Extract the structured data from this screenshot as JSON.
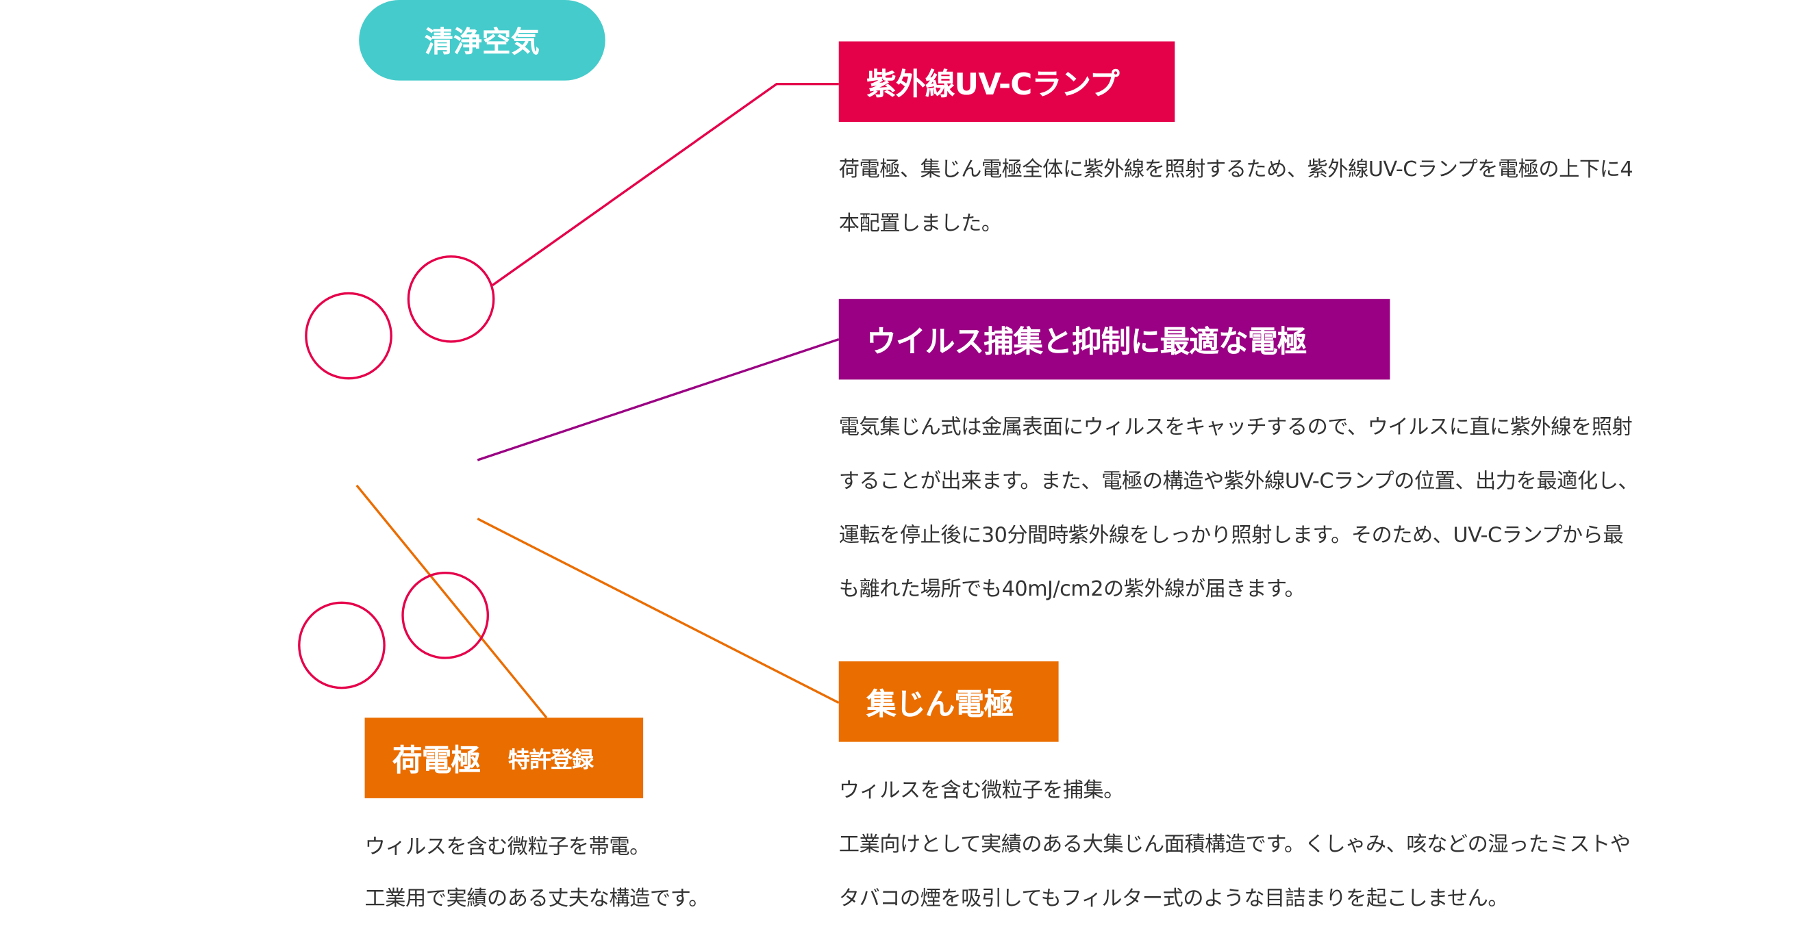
{
  "colors": {
    "teal": "#45CBCB",
    "red": "#E5004A",
    "purple": "#9A0083",
    "orange": "#EA6D00",
    "text": "#333333"
  },
  "badge": {
    "label": "清浄空気"
  },
  "uv": {
    "title": "紫外線UV-Cランプ",
    "lines": [
      "荷電極、集じん電極全体に紫外線を照射するため、紫外線UV-Cランプを電極の上下に4",
      "本配置しました。"
    ]
  },
  "electrode": {
    "title": "ウイルス捕集と抑制に最適な電極",
    "lines": [
      "電気集じん式は金属表面にウィルスをキャッチするので、ウイルスに直に紫外線を照射",
      "することが出来ます。また、電極の構造や紫外線UV-Cランプの位置、出力を最適化し、",
      "運転を停止後に30分間時紫外線をしっかり照射します。そのため、UV-Cランプから最",
      "も離れた場所でも40mJ/cm2の紫外線が届きます。"
    ]
  },
  "collector": {
    "title": "集じん電極",
    "lines": [
      "ウィルスを含む微粒子を捕集。",
      "工業向けとして実績のある大集じん面積構造です。くしゃみ、咳などの湿ったミストや",
      "タバコの煙を吸引してもフィルター式のような目詰まりを起こしません。"
    ]
  },
  "charger": {
    "title": "荷電極",
    "badge": "特許登録",
    "lines": [
      "ウィルスを含む微粒子を帯電。",
      "工業用で実績のある丈夫な構造です。"
    ]
  }
}
